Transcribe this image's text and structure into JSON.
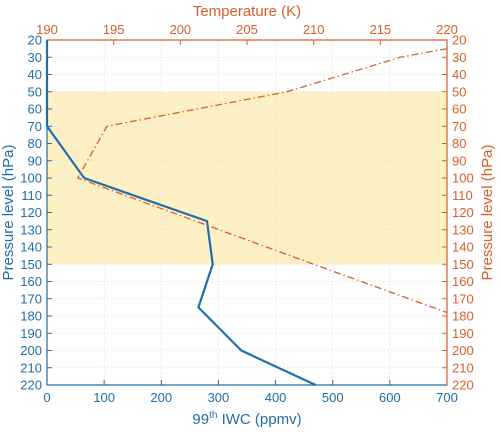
{
  "chart_data": {
    "type": "line",
    "xlabel_bottom_prefix": "99",
    "xlabel_bottom_sup": "th",
    "xlabel_bottom_suffix": " IWC (ppmv)",
    "xlabel_top": "Temperature (K)",
    "ylabel_left": "Pressure level (hPa)",
    "ylabel_right": "Pressure level (hPa)",
    "x_bottom_lim": [
      0,
      700
    ],
    "x_top_lim": [
      190,
      220
    ],
    "y_lim": [
      20,
      220
    ],
    "y_inverted": true,
    "x_bottom_ticks": [
      0,
      100,
      200,
      300,
      400,
      500,
      600,
      700
    ],
    "x_top_ticks": [
      190,
      195,
      200,
      205,
      210,
      215,
      220
    ],
    "y_ticks": [
      20,
      30,
      40,
      50,
      60,
      70,
      80,
      90,
      100,
      110,
      120,
      130,
      140,
      150,
      160,
      170,
      180,
      190,
      200,
      210,
      220
    ],
    "grid": true,
    "shaded_band": {
      "y_from": 50,
      "y_to": 150,
      "color": "#fdf0c4"
    },
    "colors": {
      "iwc": "#1f6fa8",
      "temperature": "#d95f2a"
    },
    "series": [
      {
        "axis": "bottom",
        "style": "solid",
        "points": [
          {
            "x": 0,
            "y": 20
          },
          {
            "x": 0,
            "y": 70
          },
          {
            "x": 65,
            "y": 100
          },
          {
            "x": 280,
            "y": 125
          },
          {
            "x": 290,
            "y": 150
          },
          {
            "x": 265,
            "y": 175
          },
          {
            "x": 340,
            "y": 200
          },
          {
            "x": 470,
            "y": 220
          }
        ]
      },
      {
        "axis": "top",
        "style": "dashdot",
        "points": [
          {
            "x": 220,
            "y": 25
          },
          {
            "x": 216.5,
            "y": 30
          },
          {
            "x": 208,
            "y": 50
          },
          {
            "x": 194.5,
            "y": 70
          },
          {
            "x": 192.3,
            "y": 100
          },
          {
            "x": 210,
            "y": 150
          },
          {
            "x": 220,
            "y": 178
          }
        ]
      }
    ]
  }
}
